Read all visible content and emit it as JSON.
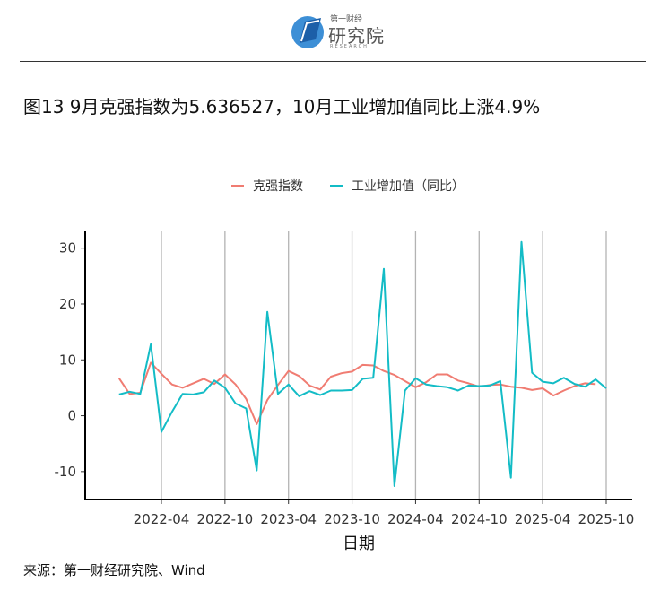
{
  "header": {
    "logo_top": "第一财经",
    "logo_main": "研究院",
    "logo_sub": "RESEARCH"
  },
  "title": "图13 9月克强指数为5.636527，10月工业增加值同比上涨4.9%",
  "source": "来源：第一财经研究院、Wind",
  "colors": {
    "series1": "#F07C72",
    "series2": "#13BCC6",
    "grid": "#b3b3b3",
    "axis": "#000000"
  },
  "chart_data": {
    "type": "line",
    "xlabel": "日期",
    "ylabel": "",
    "ylim": [
      -15,
      33
    ],
    "yticks": [
      -10,
      0,
      10,
      20,
      30
    ],
    "x_tick_labels": [
      "2022-04",
      "2022-10",
      "2023-04",
      "2023-10",
      "2024-04",
      "2024-10",
      "2025-04",
      "2025-10"
    ],
    "grid": "vertical lines at x ticks",
    "legend": "top",
    "series": [
      {
        "name": "克强指数",
        "color": "#F07C72",
        "x": [
          "2021-12",
          "2022-01",
          "2022-02",
          "2022-03",
          "2022-04",
          "2022-05",
          "2022-06",
          "2022-07",
          "2022-08",
          "2022-09",
          "2022-10",
          "2022-11",
          "2022-12",
          "2023-01",
          "2023-02",
          "2023-03",
          "2023-04",
          "2023-05",
          "2023-06",
          "2023-07",
          "2023-08",
          "2023-09",
          "2023-10",
          "2023-11",
          "2023-12",
          "2024-01",
          "2024-02",
          "2024-03",
          "2024-04",
          "2024-05",
          "2024-06",
          "2024-07",
          "2024-08",
          "2024-09",
          "2024-10",
          "2024-11",
          "2024-12",
          "2025-01",
          "2025-02",
          "2025-03",
          "2025-04",
          "2025-05",
          "2025-06",
          "2025-07",
          "2025-08",
          "2025-09"
        ],
        "y": [
          6.7,
          3.9,
          4.1,
          9.5,
          7.5,
          5.6,
          5.0,
          5.8,
          6.6,
          5.7,
          7.4,
          5.6,
          3.0,
          -1.5,
          2.8,
          5.5,
          8.0,
          7.1,
          5.4,
          4.7,
          7.0,
          7.6,
          7.9,
          9.1,
          9.0,
          8.0,
          7.3,
          6.2,
          5.1,
          6.0,
          7.4,
          7.4,
          6.3,
          5.8,
          5.2,
          5.5,
          5.6,
          5.2,
          5.0,
          4.6,
          4.9,
          3.6,
          4.5,
          5.3,
          5.8,
          5.64
        ]
      },
      {
        "name": "工业增加值（同比）",
        "color": "#13BCC6",
        "x": [
          "2021-12",
          "2022-01",
          "2022-02",
          "2022-03",
          "2022-04",
          "2022-05",
          "2022-06",
          "2022-07",
          "2022-08",
          "2022-09",
          "2022-10",
          "2022-11",
          "2022-12",
          "2023-01",
          "2023-02",
          "2023-03",
          "2023-04",
          "2023-05",
          "2023-06",
          "2023-07",
          "2023-08",
          "2023-09",
          "2023-10",
          "2023-11",
          "2023-12",
          "2024-01",
          "2024-02",
          "2024-03",
          "2024-04",
          "2024-05",
          "2024-06",
          "2024-07",
          "2024-08",
          "2024-09",
          "2024-10",
          "2024-11",
          "2024-12",
          "2025-01",
          "2025-02",
          "2025-03",
          "2025-04",
          "2025-05",
          "2025-06",
          "2025-07",
          "2025-08",
          "2025-09",
          "2025-10"
        ],
        "y": [
          3.8,
          4.3,
          3.9,
          12.8,
          -2.9,
          0.7,
          3.9,
          3.8,
          4.2,
          6.3,
          5.0,
          2.2,
          1.3,
          -9.8,
          18.6,
          3.9,
          5.6,
          3.5,
          4.4,
          3.7,
          4.5,
          4.5,
          4.6,
          6.6,
          6.8,
          26.3,
          -12.6,
          4.5,
          6.7,
          5.6,
          5.3,
          5.1,
          4.5,
          5.4,
          5.3,
          5.4,
          6.2,
          -11.1,
          31.1,
          7.7,
          6.1,
          5.8,
          6.8,
          5.7,
          5.2,
          6.5,
          4.9
        ]
      }
    ]
  }
}
